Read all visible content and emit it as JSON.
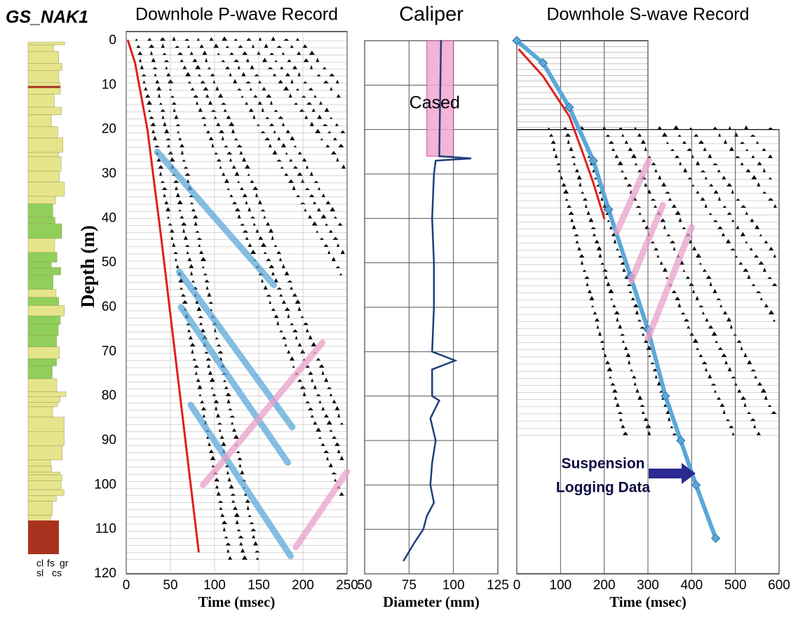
{
  "figure_title": "GS_NAK1",
  "lithology_legend": {
    "top": [
      "cl",
      "fs",
      "gr"
    ],
    "bottom": [
      "sl",
      "cs"
    ]
  },
  "chart_data": [
    {
      "type": "line",
      "title": "Downhole P-wave Record",
      "x_label": "Time (msec)",
      "y_label": "Depth (m)",
      "xlim": [
        0,
        250
      ],
      "xticks": [
        0,
        50,
        100,
        150,
        200,
        250
      ],
      "ylim": [
        120,
        0
      ],
      "yticks": [
        0,
        10,
        20,
        30,
        40,
        50,
        60,
        70,
        80,
        90,
        100,
        110,
        120
      ],
      "series": [
        {
          "color": "#e0201c",
          "x": [
            2,
            10,
            24,
            40,
            55,
            70,
            82
          ],
          "values": [
            0,
            5,
            20,
            45,
            70,
            95,
            115
          ]
        },
        {
          "color": "#5ba8d8",
          "x": [
            35,
            167
          ],
          "values": [
            25,
            55
          ]
        },
        {
          "color": "#5ba8d8",
          "x": [
            60,
            188
          ],
          "values": [
            52,
            87
          ]
        },
        {
          "color": "#5ba8d8",
          "x": [
            62,
            183
          ],
          "values": [
            60,
            95
          ]
        },
        {
          "color": "#5ba8d8",
          "x": [
            73,
            186
          ],
          "values": [
            82,
            116
          ]
        },
        {
          "color": "#e8a0c8",
          "x": [
            87,
            222
          ],
          "values": [
            100,
            68
          ]
        },
        {
          "color": "#e8a0c8",
          "x": [
            192,
            250
          ],
          "values": [
            114,
            97
          ]
        }
      ]
    },
    {
      "type": "line",
      "title": "Caliper",
      "x_label": "Diameter (mm)",
      "xlim": [
        50,
        125
      ],
      "xticks": [
        50,
        75,
        100,
        125
      ],
      "ylim": [
        120,
        0
      ],
      "yticks": [
        0,
        10,
        20,
        30,
        40,
        50,
        60,
        70,
        80,
        90,
        100,
        110,
        120
      ],
      "shaded": {
        "label": "Cased",
        "color": "#f2a8cf",
        "xlim": [
          85,
          100
        ],
        "ylim": [
          0,
          26
        ]
      },
      "series": [
        {
          "color": "#1f3f7a",
          "x": [
            93,
            92,
            110,
            90,
            89,
            88,
            89,
            89,
            88,
            101,
            88,
            88,
            92,
            87,
            90,
            88,
            87,
            89,
            85,
            83,
            78,
            72
          ],
          "values": [
            0,
            26,
            26.5,
            27,
            30,
            40,
            50,
            60,
            70,
            72,
            74,
            80,
            81,
            85,
            90,
            95,
            100,
            104,
            107,
            110,
            113,
            117
          ]
        }
      ]
    },
    {
      "type": "line",
      "title": "Downhole S-wave Record",
      "x_label": "Time (msec)",
      "xlim": [
        0,
        600
      ],
      "xticks": [
        0,
        100,
        200,
        300,
        400,
        500,
        600
      ],
      "ylim": [
        120,
        0
      ],
      "annotation": [
        "Suspension",
        "Logging Data"
      ],
      "series": [
        {
          "color": "#5ba8d8",
          "marker": "diamond",
          "x": [
            0,
            60,
            120,
            175,
            210,
            260,
            300,
            340,
            375,
            410,
            455
          ],
          "values": [
            0,
            5,
            15,
            27,
            38,
            53,
            65,
            80,
            90,
            100,
            112
          ]
        },
        {
          "color": "#e0201c",
          "x": [
            5,
            60,
            120,
            150,
            175,
            200
          ],
          "values": [
            2,
            8,
            17,
            25,
            32,
            40
          ]
        },
        {
          "color": "#e8a0c8",
          "x": [
            229,
            302
          ],
          "values": [
            43,
            27
          ]
        },
        {
          "color": "#e8a0c8",
          "x": [
            262,
            334
          ],
          "values": [
            54,
            37
          ]
        },
        {
          "color": "#e8a0c8",
          "x": [
            300,
            400
          ],
          "values": [
            67,
            42
          ]
        }
      ]
    }
  ]
}
